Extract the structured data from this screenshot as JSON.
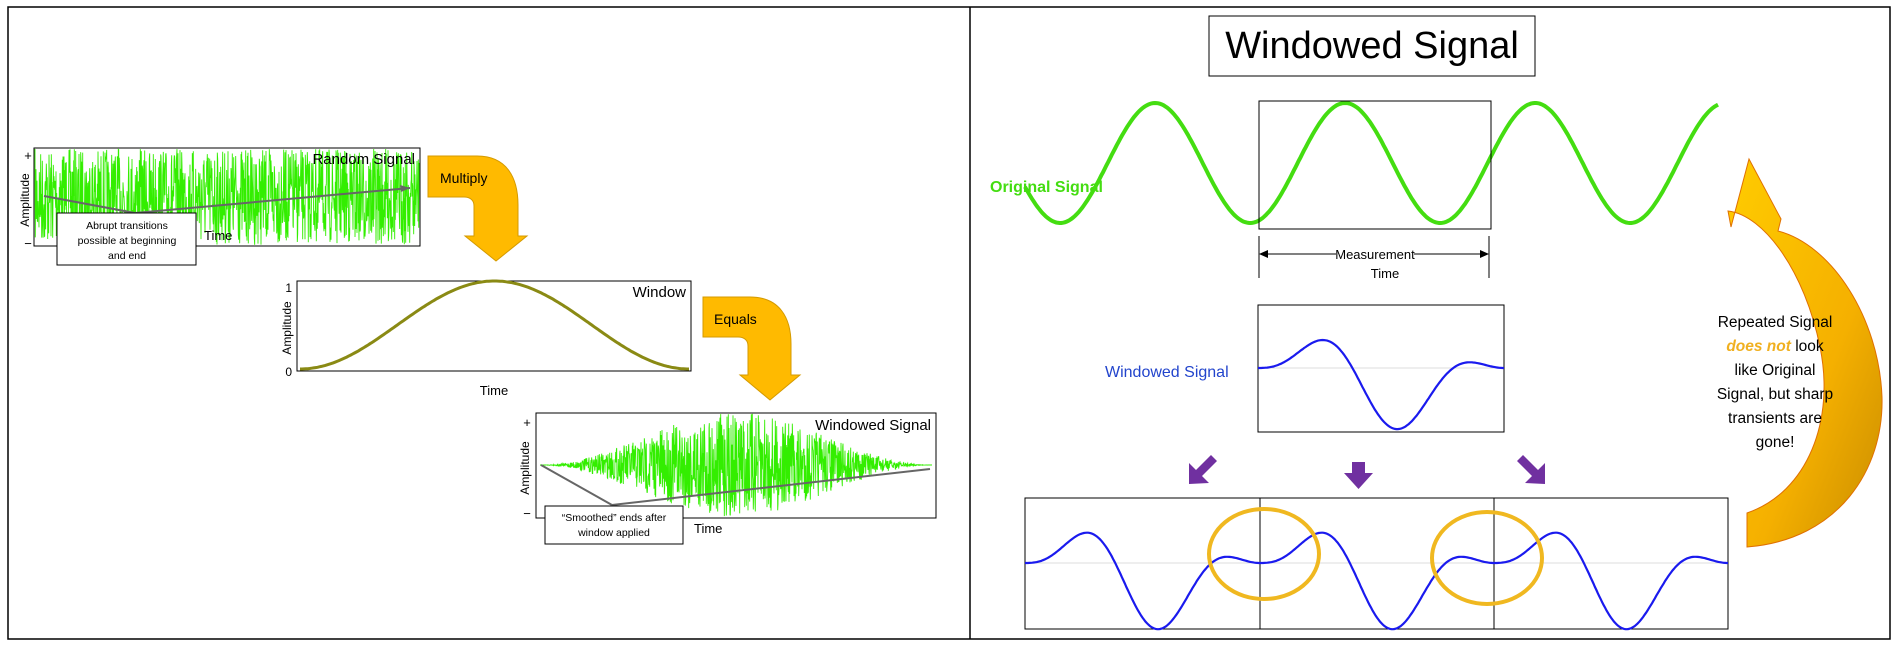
{
  "left": {
    "random": {
      "title": "Random Signal",
      "ylabel": "Amplitude",
      "plus": "+",
      "minus": "−",
      "xlabel": "Time",
      "callout": [
        "Abrupt transitions",
        "possible at beginning",
        "and end"
      ]
    },
    "multiply_label": "Multiply",
    "window": {
      "title": "Window",
      "ylabel": "Amplitude",
      "ymax_label": "1",
      "ymin_label": "0",
      "xlabel": "Time"
    },
    "equals_label": "Equals",
    "windowed": {
      "title": "Windowed Signal",
      "ylabel": "Amplitude",
      "plus": "+",
      "minus": "−",
      "xlabel": "Time",
      "callout": [
        "“Smoothed” ends after",
        "window applied"
      ]
    }
  },
  "right": {
    "title": "Windowed Signal",
    "original_label": "Original Signal",
    "measurement_label": [
      "Measurement",
      "Time"
    ],
    "windowed_label": "Windowed Signal",
    "note": {
      "line1": "Repeated Signal",
      "emph": "does not",
      "line2_rest": " look",
      "line3": "like Original",
      "line4": "Signal, but sharp",
      "line5": "transients are",
      "line6": "gone!"
    }
  },
  "colors": {
    "noise_green": "#33ee00",
    "sine_green": "#44dd11",
    "window_olive": "#8a8a14",
    "blue_wave": "#1a1aee",
    "blue_label": "#2244cc",
    "orange": "#ffba00",
    "orange_dark": "#d08a00",
    "purple": "#7030a0",
    "ring": "#f0b820",
    "emph_orange": "#f0b020"
  },
  "icons": {
    "down_arrows": "down-arrow-icon",
    "curved_arrow": "curved-arrow-icon"
  }
}
